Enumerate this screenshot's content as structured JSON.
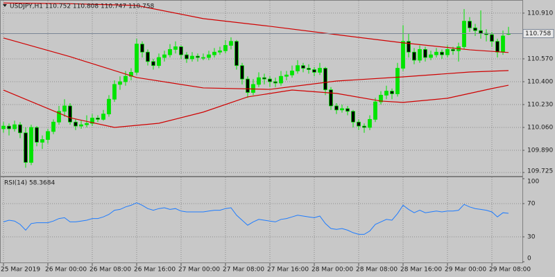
{
  "chart_data": [
    {
      "type": "candlestick",
      "title": "USDJPY,H1  110.752 110.808 110.747 110.758",
      "categories": [
        "25 Mar 2019",
        null,
        null,
        null,
        null,
        null,
        null,
        null,
        "26 Mar 00:00",
        null,
        null,
        null,
        null,
        null,
        null,
        null,
        "26 Mar 08:00",
        null,
        null,
        null,
        null,
        null,
        null,
        null,
        "26 Mar 16:00",
        null,
        null,
        null,
        null,
        null,
        null,
        null,
        "27 Mar 00:00",
        null,
        null,
        null,
        null,
        null,
        null,
        null,
        "27 Mar 08:00",
        null,
        null,
        null,
        null,
        null,
        null,
        null,
        "27 Mar 16:00",
        null,
        null,
        null,
        null,
        null,
        null,
        null,
        "28 Mar 00:00",
        null,
        null,
        null,
        null,
        null,
        null,
        null,
        "28 Mar 08:00",
        null,
        null,
        null,
        null,
        null,
        null,
        null,
        "28 Mar 16:00",
        null,
        null,
        null,
        null,
        null,
        null,
        null,
        "29 Mar 00:00",
        null,
        null,
        null,
        null,
        null,
        null,
        null,
        "29 Mar 08:00",
        null,
        null,
        null
      ],
      "ohlc": [
        [
          110.05,
          110.1,
          110.02,
          110.07
        ],
        [
          110.07,
          110.09,
          110.0,
          110.05
        ],
        [
          110.05,
          110.11,
          110.03,
          110.08
        ],
        [
          110.08,
          110.1,
          109.98,
          110.02
        ],
        [
          110.02,
          110.06,
          109.76,
          109.8
        ],
        [
          109.8,
          110.08,
          109.78,
          110.06
        ],
        [
          110.06,
          110.07,
          109.92,
          109.95
        ],
        [
          109.95,
          110.0,
          109.9,
          109.97
        ],
        [
          109.97,
          110.05,
          109.94,
          110.03
        ],
        [
          110.03,
          110.12,
          110.01,
          110.1
        ],
        [
          110.1,
          110.22,
          110.08,
          110.18
        ],
        [
          110.18,
          110.27,
          110.14,
          110.22
        ],
        [
          110.22,
          110.24,
          110.08,
          110.1
        ],
        [
          110.1,
          110.12,
          110.04,
          110.07
        ],
        [
          110.07,
          110.11,
          110.05,
          110.08
        ],
        [
          110.08,
          110.15,
          110.06,
          110.09
        ],
        [
          110.09,
          110.16,
          110.07,
          110.13
        ],
        [
          110.13,
          110.15,
          110.1,
          110.12
        ],
        [
          110.12,
          110.19,
          110.11,
          110.16
        ],
        [
          110.16,
          110.3,
          110.14,
          110.27
        ],
        [
          110.27,
          110.41,
          110.25,
          110.38
        ],
        [
          110.38,
          110.44,
          110.34,
          110.4
        ],
        [
          110.4,
          110.48,
          110.37,
          110.44
        ],
        [
          110.44,
          110.5,
          110.41,
          110.47
        ],
        [
          110.47,
          110.72,
          110.45,
          110.68
        ],
        [
          110.68,
          110.7,
          110.58,
          110.62
        ],
        [
          110.62,
          110.64,
          110.52,
          110.55
        ],
        [
          110.55,
          110.57,
          110.49,
          110.52
        ],
        [
          110.52,
          110.61,
          110.5,
          110.58
        ],
        [
          110.58,
          110.63,
          110.55,
          110.6
        ],
        [
          110.6,
          110.68,
          110.58,
          110.64
        ],
        [
          110.64,
          110.7,
          110.61,
          110.66
        ],
        [
          110.66,
          110.67,
          110.57,
          110.6
        ],
        [
          110.6,
          110.62,
          110.54,
          110.57
        ],
        [
          110.57,
          110.62,
          110.55,
          110.59
        ],
        [
          110.59,
          110.61,
          110.55,
          110.58
        ],
        [
          110.58,
          110.61,
          110.56,
          110.58
        ],
        [
          110.58,
          110.63,
          110.56,
          110.6
        ],
        [
          110.6,
          110.65,
          110.58,
          110.62
        ],
        [
          110.62,
          110.66,
          110.6,
          110.63
        ],
        [
          110.63,
          110.71,
          110.61,
          110.67
        ],
        [
          110.67,
          110.73,
          110.64,
          110.7
        ],
        [
          110.7,
          110.71,
          110.49,
          110.52
        ],
        [
          110.52,
          110.54,
          110.38,
          110.42
        ],
        [
          110.42,
          110.44,
          110.28,
          110.32
        ],
        [
          110.32,
          110.42,
          110.3,
          110.38
        ],
        [
          110.38,
          110.47,
          110.36,
          110.43
        ],
        [
          110.43,
          110.46,
          110.38,
          110.42
        ],
        [
          110.42,
          110.44,
          110.36,
          110.4
        ],
        [
          110.4,
          110.43,
          110.36,
          110.39
        ],
        [
          110.39,
          110.48,
          110.37,
          110.44
        ],
        [
          110.44,
          110.48,
          110.41,
          110.45
        ],
        [
          110.45,
          110.52,
          110.43,
          110.48
        ],
        [
          110.48,
          110.56,
          110.46,
          110.52
        ],
        [
          110.52,
          110.54,
          110.47,
          110.5
        ],
        [
          110.5,
          110.53,
          110.46,
          110.49
        ],
        [
          110.49,
          110.51,
          110.44,
          110.47
        ],
        [
          110.47,
          110.54,
          110.45,
          110.5
        ],
        [
          110.5,
          110.51,
          110.3,
          110.34
        ],
        [
          110.34,
          110.36,
          110.19,
          110.22
        ],
        [
          110.22,
          110.24,
          110.16,
          110.19
        ],
        [
          110.19,
          110.23,
          110.17,
          110.2
        ],
        [
          110.2,
          110.22,
          110.15,
          110.18
        ],
        [
          110.18,
          110.19,
          110.06,
          110.1
        ],
        [
          110.1,
          110.12,
          110.04,
          110.07
        ],
        [
          110.07,
          110.09,
          110.02,
          110.06
        ],
        [
          110.06,
          110.15,
          110.04,
          110.12
        ],
        [
          110.12,
          110.28,
          110.1,
          110.25
        ],
        [
          110.25,
          110.33,
          110.23,
          110.3
        ],
        [
          110.3,
          110.37,
          110.27,
          110.33
        ],
        [
          110.33,
          110.35,
          110.27,
          110.31
        ],
        [
          110.31,
          110.54,
          110.29,
          110.5
        ],
        [
          110.5,
          110.82,
          110.48,
          110.7
        ],
        [
          110.7,
          110.76,
          110.58,
          110.62
        ],
        [
          110.62,
          110.65,
          110.53,
          110.56
        ],
        [
          110.56,
          110.67,
          110.54,
          110.64
        ],
        [
          110.64,
          110.66,
          110.55,
          110.58
        ],
        [
          110.58,
          110.63,
          110.56,
          110.6
        ],
        [
          110.6,
          110.65,
          110.58,
          110.62
        ],
        [
          110.62,
          110.64,
          110.57,
          110.6
        ],
        [
          110.6,
          110.67,
          110.58,
          110.64
        ],
        [
          110.64,
          110.66,
          110.6,
          110.63
        ],
        [
          110.63,
          110.69,
          110.55,
          110.66
        ],
        [
          110.66,
          110.94,
          110.64,
          110.85
        ],
        [
          110.85,
          110.88,
          110.77,
          110.8
        ],
        [
          110.8,
          110.83,
          110.74,
          110.78
        ],
        [
          110.78,
          110.93,
          110.72,
          110.76
        ],
        [
          110.76,
          110.79,
          110.7,
          110.75
        ],
        [
          110.75,
          110.77,
          110.66,
          110.7
        ],
        [
          110.7,
          110.72,
          110.58,
          110.62
        ],
        [
          110.62,
          110.78,
          110.6,
          110.74
        ],
        [
          110.752,
          110.808,
          110.747,
          110.758
        ]
      ],
      "up_color": "#00e400",
      "down_color": "#000000",
      "overlays": [
        {
          "color": "#d00000",
          "x": [
            0,
            12,
            24,
            36,
            48,
            60,
            72,
            84,
            91
          ],
          "values": [
            110.985,
            110.98,
            110.967,
            110.869,
            110.812,
            110.75,
            110.689,
            110.637,
            110.617
          ]
        },
        {
          "color": "#d00000",
          "x": [
            0,
            12,
            24,
            36,
            48,
            60,
            72,
            84,
            91
          ],
          "values": [
            110.725,
            110.586,
            110.431,
            110.354,
            110.343,
            110.405,
            110.436,
            110.472,
            110.483
          ]
        },
        {
          "color": "#d00000",
          "x": [
            0,
            12,
            20,
            28,
            36,
            44,
            52,
            60,
            68,
            72,
            80,
            88,
            91
          ],
          "values": [
            110.338,
            110.132,
            110.06,
            110.091,
            110.174,
            110.287,
            110.338,
            110.313,
            110.256,
            110.246,
            110.277,
            110.349,
            110.374
          ]
        }
      ],
      "last_price": 110.758,
      "ylim": [
        109.71,
        110.992
      ],
      "yticks": [
        {
          "value": 110.91,
          "label": "110.910"
        },
        {
          "value": 110.57,
          "label": "110.570"
        },
        {
          "value": 110.4,
          "label": "110.400"
        },
        {
          "value": 110.23,
          "label": "110.230"
        },
        {
          "value": 110.06,
          "label": "110.060"
        },
        {
          "value": 109.89,
          "label": "109.890"
        },
        109.725
      ],
      "grid": true
    },
    {
      "type": "line",
      "title": "RSI(14) 58.3684",
      "series": [
        {
          "color": "#1e7cff",
          "values": [
            48,
            50,
            49,
            45,
            38,
            46,
            47,
            47,
            47,
            49,
            52,
            53,
            48,
            48,
            49,
            50,
            52,
            52,
            54,
            57,
            62,
            63,
            66,
            68,
            71,
            68,
            64,
            62,
            64,
            65,
            63,
            64,
            61,
            60,
            60,
            60,
            60,
            61,
            62,
            62,
            64,
            65,
            56,
            50,
            44,
            48,
            51,
            50,
            49,
            48,
            51,
            52,
            54,
            56,
            55,
            54,
            53,
            55,
            46,
            40,
            39,
            40,
            38,
            35,
            33,
            33,
            37,
            45,
            48,
            51,
            50,
            58,
            68,
            63,
            59,
            62,
            59,
            60,
            61,
            60,
            61,
            61,
            62,
            69,
            66,
            64,
            63,
            62,
            60,
            54,
            59,
            58.3684
          ]
        }
      ],
      "ylim": [
        0,
        100
      ],
      "yticks": [
        100,
        70,
        30,
        0
      ],
      "grid": true
    }
  ]
}
